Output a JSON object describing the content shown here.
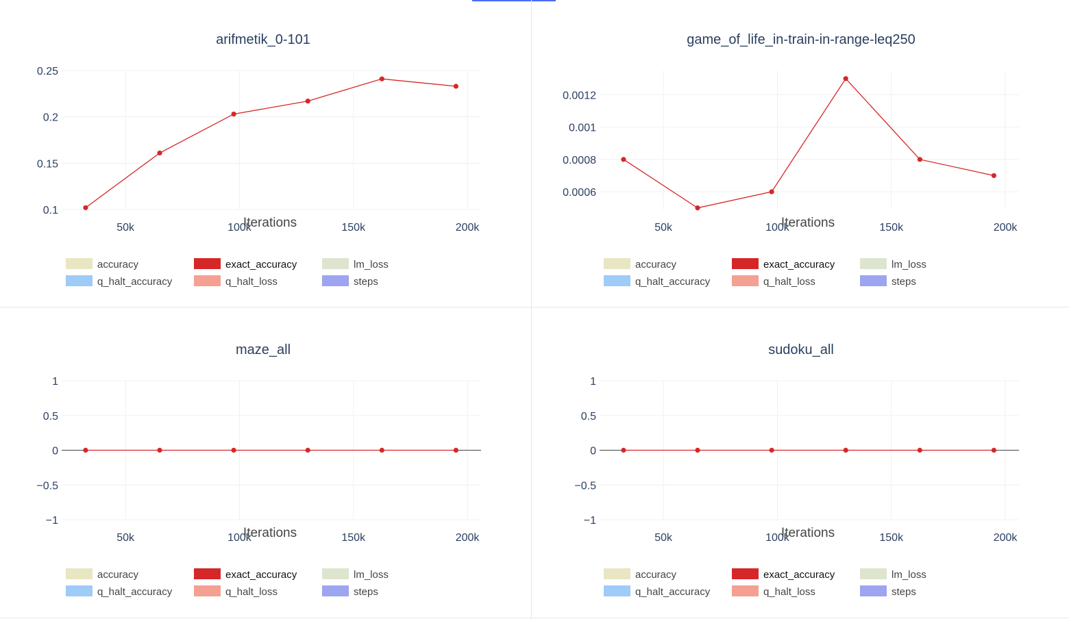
{
  "chart_data": [
    {
      "type": "line",
      "title": "arifmetik_0-101",
      "xlabel": "Iterations",
      "ylabel": "",
      "x": [
        32500,
        65000,
        97500,
        130000,
        162500,
        195000
      ],
      "xlim": [
        22000,
        206000
      ],
      "ylim": [
        0.1,
        0.25
      ],
      "xticks": [
        50000,
        100000,
        150000,
        200000
      ],
      "xtick_labels": [
        "50k",
        "100k",
        "150k",
        "200k"
      ],
      "yticks": [
        0.1,
        0.15,
        0.2,
        0.25
      ],
      "ytick_labels": [
        "0.1",
        "0.15",
        "0.2",
        "0.25"
      ],
      "series": [
        {
          "name": "exact_accuracy",
          "values": [
            0.102,
            0.161,
            0.203,
            0.217,
            0.241,
            0.233
          ]
        }
      ],
      "legend": [
        {
          "name": "accuracy",
          "color": "#e8e6c3"
        },
        {
          "name": "exact_accuracy",
          "color": "#d62728",
          "active": true
        },
        {
          "name": "lm_loss",
          "color": "#dde5cf"
        },
        {
          "name": "q_halt_accuracy",
          "color": "#9ecbf7"
        },
        {
          "name": "q_halt_loss",
          "color": "#f4a092"
        },
        {
          "name": "steps",
          "color": "#9da4f0"
        }
      ],
      "grid": true,
      "legend_position": "bottom"
    },
    {
      "type": "line",
      "title": "game_of_life_in-train-in-range-leq250",
      "xlabel": "Iterations",
      "ylabel": "",
      "x": [
        32500,
        65000,
        97500,
        130000,
        162500,
        195000
      ],
      "xlim": [
        22000,
        206000
      ],
      "ylim": [
        0.00049,
        0.00135
      ],
      "xticks": [
        50000,
        100000,
        150000,
        200000
      ],
      "xtick_labels": [
        "50k",
        "100k",
        "150k",
        "200k"
      ],
      "yticks": [
        0.0006,
        0.0008,
        0.001,
        0.0012
      ],
      "ytick_labels": [
        "0.0006",
        "0.0008",
        "0.001",
        "0.0012"
      ],
      "series": [
        {
          "name": "exact_accuracy",
          "values": [
            0.0008,
            0.0005,
            0.0006,
            0.0013,
            0.0008,
            0.0007
          ]
        }
      ],
      "legend": [
        {
          "name": "accuracy",
          "color": "#e8e6c3"
        },
        {
          "name": "exact_accuracy",
          "color": "#d62728",
          "active": true
        },
        {
          "name": "lm_loss",
          "color": "#dde5cf"
        },
        {
          "name": "q_halt_accuracy",
          "color": "#9ecbf7"
        },
        {
          "name": "q_halt_loss",
          "color": "#f4a092"
        },
        {
          "name": "steps",
          "color": "#9da4f0"
        }
      ],
      "grid": true,
      "legend_position": "bottom"
    },
    {
      "type": "line",
      "title": "maze_all",
      "xlabel": "Iterations",
      "ylabel": "",
      "x": [
        32500,
        65000,
        97500,
        130000,
        162500,
        195000
      ],
      "xlim": [
        22000,
        206000
      ],
      "ylim": [
        -1,
        1
      ],
      "xticks": [
        50000,
        100000,
        150000,
        200000
      ],
      "xtick_labels": [
        "50k",
        "100k",
        "150k",
        "200k"
      ],
      "yticks": [
        -1,
        -0.5,
        0,
        0.5,
        1
      ],
      "ytick_labels": [
        "−1",
        "−0.5",
        "0",
        "0.5",
        "1"
      ],
      "series": [
        {
          "name": "exact_accuracy",
          "values": [
            0,
            0,
            0,
            0,
            0,
            0
          ]
        }
      ],
      "legend": [
        {
          "name": "accuracy",
          "color": "#e8e6c3"
        },
        {
          "name": "exact_accuracy",
          "color": "#d62728",
          "active": true
        },
        {
          "name": "lm_loss",
          "color": "#dde5cf"
        },
        {
          "name": "q_halt_accuracy",
          "color": "#9ecbf7"
        },
        {
          "name": "q_halt_loss",
          "color": "#f4a092"
        },
        {
          "name": "steps",
          "color": "#9da4f0"
        }
      ],
      "grid": true,
      "legend_position": "bottom"
    },
    {
      "type": "line",
      "title": "sudoku_all",
      "xlabel": "Iterations",
      "ylabel": "",
      "x": [
        32500,
        65000,
        97500,
        130000,
        162500,
        195000
      ],
      "xlim": [
        22000,
        206000
      ],
      "ylim": [
        -1,
        1
      ],
      "xticks": [
        50000,
        100000,
        150000,
        200000
      ],
      "xtick_labels": [
        "50k",
        "100k",
        "150k",
        "200k"
      ],
      "yticks": [
        -1,
        -0.5,
        0,
        0.5,
        1
      ],
      "ytick_labels": [
        "−1",
        "−0.5",
        "0",
        "0.5",
        "1"
      ],
      "series": [
        {
          "name": "exact_accuracy",
          "values": [
            0,
            0,
            0,
            0,
            0,
            0
          ]
        }
      ],
      "legend": [
        {
          "name": "accuracy",
          "color": "#e8e6c3"
        },
        {
          "name": "exact_accuracy",
          "color": "#d62728",
          "active": true
        },
        {
          "name": "lm_loss",
          "color": "#dde5cf"
        },
        {
          "name": "q_halt_accuracy",
          "color": "#9ecbf7"
        },
        {
          "name": "q_halt_loss",
          "color": "#f4a092"
        },
        {
          "name": "steps",
          "color": "#9da4f0"
        }
      ],
      "grid": true,
      "legend_position": "bottom"
    }
  ],
  "colors": {
    "line": "#d62728",
    "grid": "#eef0f5",
    "zero_line": "#444444",
    "text": "#2a3f5f"
  }
}
